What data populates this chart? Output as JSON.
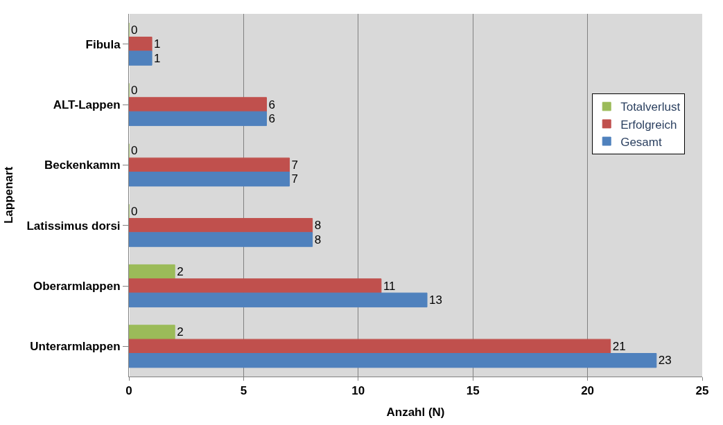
{
  "chart_data": {
    "type": "bar",
    "orientation": "horizontal",
    "xlabel": "Anzahl (N)",
    "ylabel": "Lappenart",
    "categories": [
      "Fibula",
      "ALT-Lappen",
      "Beckenkamm",
      "Latissimus dorsi",
      "Oberarmlappen",
      "Unterarmlappen"
    ],
    "series": [
      {
        "name": "Totalverlust",
        "color": "#9bbb59",
        "values": [
          0,
          0,
          0,
          0,
          2,
          2
        ]
      },
      {
        "name": "Erfolgreich",
        "color": "#c0504d",
        "values": [
          1,
          6,
          7,
          8,
          11,
          21
        ]
      },
      {
        "name": "Gesamt",
        "color": "#4f81bd",
        "values": [
          1,
          6,
          7,
          8,
          13,
          23
        ]
      }
    ],
    "xlim": [
      0,
      25
    ],
    "xticks": [
      0,
      5,
      10,
      15,
      20,
      25
    ],
    "grid": "x",
    "legend": "right",
    "data_labels": true
  }
}
